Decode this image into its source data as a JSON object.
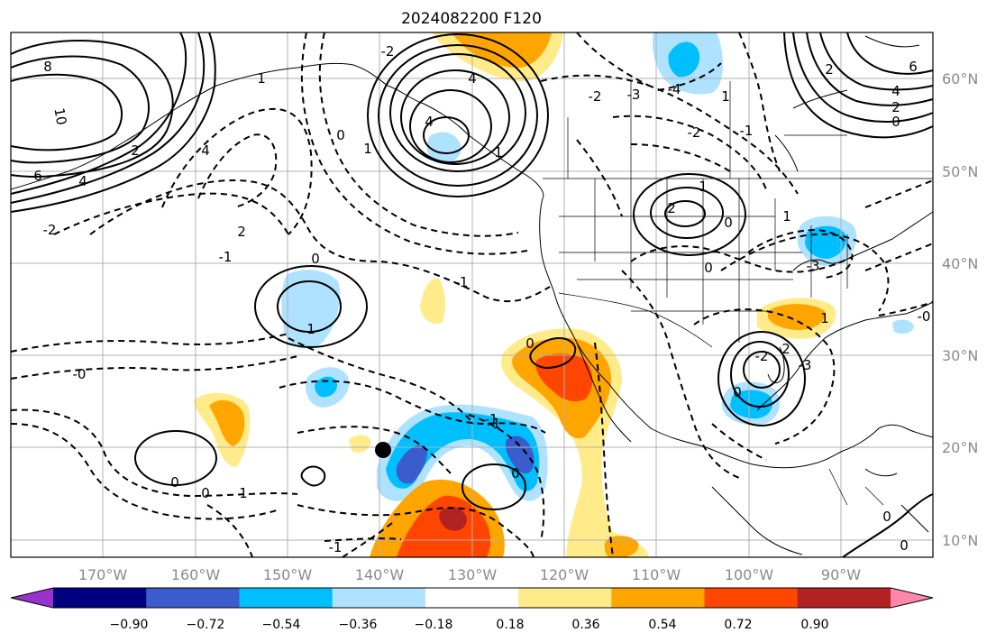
{
  "title": "2024082200 F120",
  "map": {
    "lon_labels": [
      "170°W",
      "160°W",
      "150°W",
      "140°W",
      "130°W",
      "120°W",
      "110°W",
      "100°W",
      "90°W"
    ],
    "lat_labels": [
      "60°N",
      "50°N",
      "40°N",
      "30°N",
      "20°N",
      "10°N"
    ],
    "contour_labels": [
      "8",
      "10",
      "6",
      "4",
      "2",
      "0",
      "-2",
      "-1",
      "2",
      "4",
      "1",
      "0",
      "-1",
      "-2",
      "1",
      "4",
      "1",
      "2",
      "0",
      "-3",
      "4",
      "-2",
      "-4",
      "6",
      "4",
      "2",
      "0",
      "-2",
      "1",
      "2",
      "1",
      "-1",
      "-1",
      "-2",
      "0",
      "-3",
      "1",
      "0",
      "1",
      "-0",
      "0",
      "0",
      "1",
      "-1",
      "0",
      "1",
      "0",
      "-1",
      "0",
      "0",
      "-3",
      "2",
      "-0"
    ],
    "marker": "black-dot"
  },
  "colorbar": {
    "ticks": [
      "−0.90",
      "−0.72",
      "−0.54",
      "−0.36",
      "−0.18",
      "0.18",
      "0.36",
      "0.54",
      "0.72",
      "0.90"
    ],
    "colors": [
      "#9932cc",
      "#000080",
      "#3a5ccc",
      "#00bfff",
      "#aee2ff",
      "#ffffff",
      "#ffeb8a",
      "#ffa500",
      "#ff4500",
      "#b22222",
      "#ff88aa"
    ]
  }
}
